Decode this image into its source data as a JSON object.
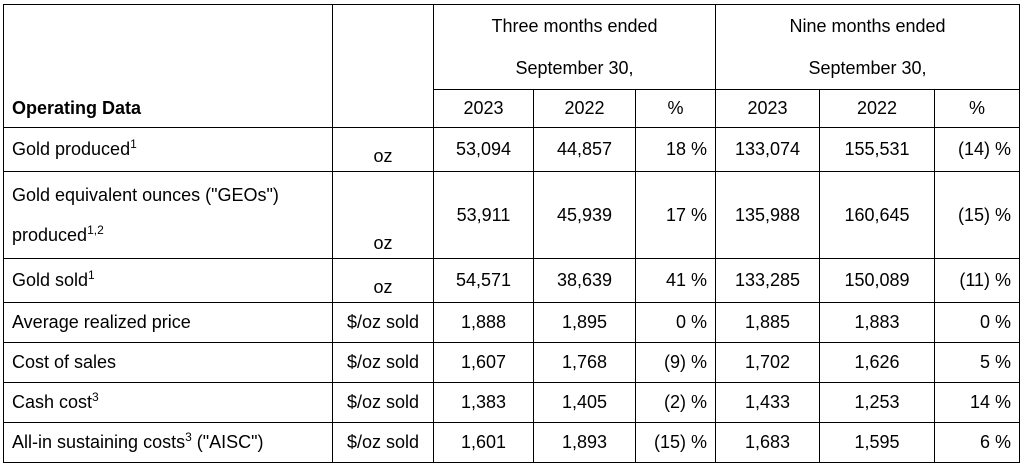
{
  "header": {
    "title": "Operating Data",
    "three_months_line1": "Three months ended",
    "three_months_line2": "September 30,",
    "nine_months_line1": "Nine months ended",
    "nine_months_line2": "September 30,",
    "col_2023_q": "2023",
    "col_2022_q": "2022",
    "col_pct_q": "%",
    "col_2023_n": "2023",
    "col_2022_n": "2022",
    "col_pct_n": "%"
  },
  "rows": [
    {
      "label": "Gold produced",
      "sup": "1",
      "unit": "oz",
      "q2023": "53,094",
      "q2022": "44,857",
      "qpct": "18 %",
      "n2023": "133,074",
      "n2022": "155,531",
      "npct": "(14) %"
    },
    {
      "label_line1": "Gold equivalent ounces (\"GEOs\")",
      "label_line2": "produced",
      "sup": "1,2",
      "unit": "oz",
      "q2023": "53,911",
      "q2022": "45,939",
      "qpct": "17 %",
      "n2023": "135,988",
      "n2022": "160,645",
      "npct": "(15) %"
    },
    {
      "label": "Gold sold",
      "sup": "1",
      "unit": "oz",
      "q2023": "54,571",
      "q2022": "38,639",
      "qpct": "41 %",
      "n2023": "133,285",
      "n2022": "150,089",
      "npct": "(11) %"
    },
    {
      "label": "Average realized price",
      "unit": "$/oz sold",
      "q2023": "1,888",
      "q2022": "1,895",
      "qpct": "0 %",
      "n2023": "1,885",
      "n2022": "1,883",
      "npct": "0 %"
    },
    {
      "label": "Cost of sales",
      "unit": "$/oz sold",
      "q2023": "1,607",
      "q2022": "1,768",
      "qpct": "(9) %",
      "n2023": "1,702",
      "n2022": "1,626",
      "npct": "5 %"
    },
    {
      "label": "Cash cost",
      "sup": "3",
      "unit": "$/oz sold",
      "q2023": "1,383",
      "q2022": "1,405",
      "qpct": "(2) %",
      "n2023": "1,433",
      "n2022": "1,253",
      "npct": "14 %"
    },
    {
      "label": "All-in sustaining costs",
      "sup": "3",
      "label_suffix": " (\"AISC\")",
      "unit": "$/oz sold",
      "q2023": "1,601",
      "q2022": "1,893",
      "qpct": "(15) %",
      "n2023": "1,683",
      "n2022": "1,595",
      "npct": "6 %"
    }
  ]
}
